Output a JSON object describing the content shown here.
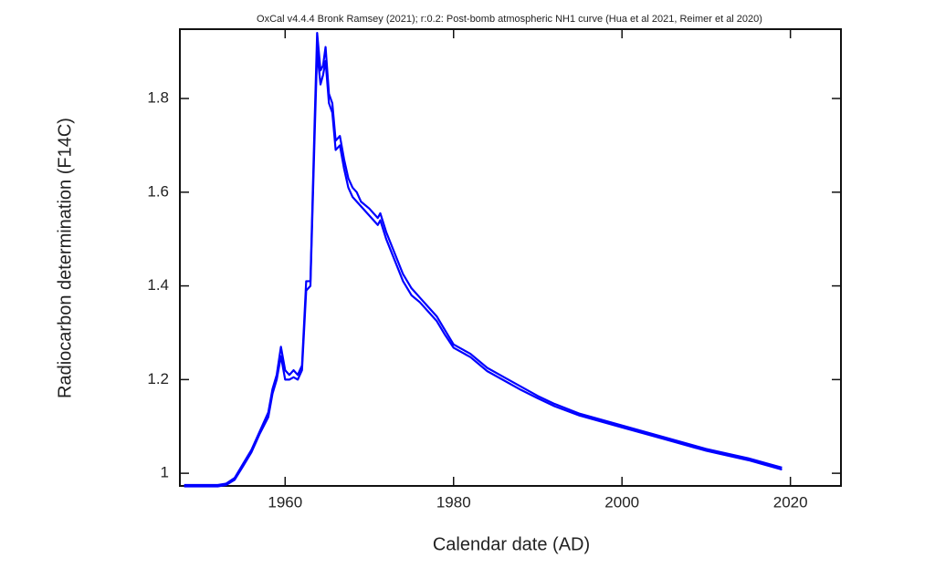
{
  "chart_data": {
    "type": "line",
    "title": "OxCal v4.4.4 Bronk Ramsey (2021); r:0.2: Post-bomb atmospheric NH1 curve (Hua et al 2021, Reimer et al 2020)",
    "x_label": "Calendar date (AD)",
    "y_label": "Radiocarbon determination (F14C)",
    "x": [
      1948,
      1950,
      1952,
      1953,
      1954,
      1955,
      1956,
      1957,
      1958,
      1958.5,
      1959,
      1959.5,
      1960,
      1960.5,
      1961,
      1961.5,
      1962,
      1962.5,
      1963,
      1963.5,
      1963.8,
      1964.2,
      1964.5,
      1964.8,
      1965.2,
      1965.6,
      1966,
      1966.5,
      1967,
      1967.5,
      1968,
      1968.5,
      1969,
      1970,
      1971,
      1971.3,
      1972,
      1973,
      1974,
      1975,
      1976,
      1977,
      1978,
      1979,
      1980,
      1982,
      1984,
      1986,
      1988,
      1990,
      1992,
      1995,
      2000,
      2005,
      2010,
      2015,
      2019
    ],
    "series": [
      {
        "color": "#0000ff",
        "values": [
          0.975,
          0.975,
          0.975,
          0.978,
          0.99,
          1.02,
          1.05,
          1.09,
          1.13,
          1.18,
          1.21,
          1.27,
          1.22,
          1.21,
          1.22,
          1.21,
          1.23,
          1.41,
          1.41,
          1.75,
          1.94,
          1.86,
          1.87,
          1.91,
          1.81,
          1.79,
          1.71,
          1.72,
          1.67,
          1.63,
          1.61,
          1.6,
          1.58,
          1.565,
          1.545,
          1.555,
          1.515,
          1.47,
          1.425,
          1.395,
          1.375,
          1.355,
          1.335,
          1.305,
          1.275,
          1.255,
          1.225,
          1.205,
          1.185,
          1.165,
          1.148,
          1.127,
          1.102,
          1.077,
          1.052,
          1.032,
          1.012
        ]
      },
      {
        "color": "#0000ff",
        "values": [
          0.972,
          0.972,
          0.972,
          0.975,
          0.986,
          1.015,
          1.045,
          1.085,
          1.12,
          1.17,
          1.2,
          1.25,
          1.2,
          1.2,
          1.205,
          1.2,
          1.22,
          1.39,
          1.4,
          1.72,
          1.9,
          1.83,
          1.85,
          1.88,
          1.79,
          1.77,
          1.69,
          1.7,
          1.65,
          1.61,
          1.59,
          1.58,
          1.57,
          1.55,
          1.53,
          1.54,
          1.5,
          1.455,
          1.41,
          1.38,
          1.365,
          1.345,
          1.325,
          1.295,
          1.268,
          1.248,
          1.218,
          1.198,
          1.178,
          1.16,
          1.143,
          1.123,
          1.098,
          1.073,
          1.048,
          1.028,
          1.008
        ]
      }
    ],
    "xlim": [
      1947.5,
      2026
    ],
    "xticks": [
      1960,
      1980,
      2000,
      2020
    ],
    "ylim": [
      0.973,
      1.948
    ],
    "yticks": [
      1,
      1.2,
      1.4,
      1.6,
      1.8
    ]
  }
}
